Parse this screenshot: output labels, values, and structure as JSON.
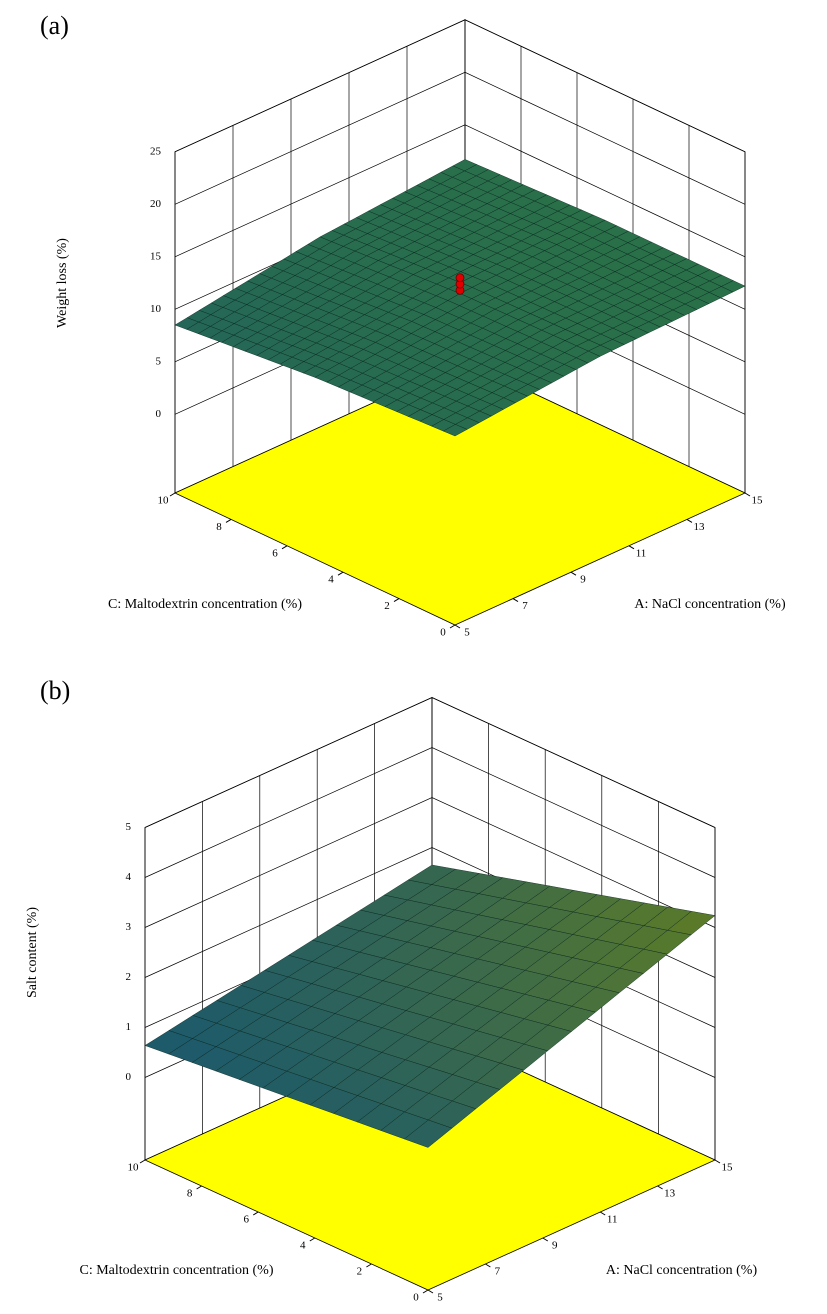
{
  "chart_data": [
    {
      "type": "surface3d",
      "panel_label": "(a)",
      "x_label": "A: NaCl concentration (%)",
      "y_label": "C: Maltodextrin concentration (%)",
      "z_label": "Weight loss (%)",
      "xlim": [
        5,
        15
      ],
      "ylim": [
        0,
        10
      ],
      "zlim": [
        -7.5,
        25
      ],
      "xticks": [
        5,
        7,
        9,
        11,
        13,
        15
      ],
      "yticks": [
        0,
        2,
        4,
        6,
        8,
        10
      ],
      "zticks": [
        0,
        5,
        10,
        15,
        20,
        25
      ],
      "surface": {
        "x": [
          5,
          10,
          15
        ],
        "y": [
          0,
          5,
          10
        ],
        "z": [
          [
            10.5,
            11.8,
            12.2
          ],
          [
            9.8,
            11.5,
            12.2
          ],
          [
            8.5,
            10.6,
            11.7
          ]
        ]
      },
      "design_points": {
        "x": 10,
        "y": 5,
        "z": [
          11.8,
          12.4,
          13
        ],
        "color": "#e00000"
      },
      "floor_color": "#ffff00",
      "colormap": [
        "#0a1a48",
        "#1d5a6a",
        "#2f7a3a"
      ]
    },
    {
      "type": "surface3d",
      "panel_label": "(b)",
      "x_label": "A: NaCl concentration (%)",
      "y_label": "C: Maltodextrin concentration (%)",
      "z_label": "Salt content (%)",
      "xlim": [
        5,
        15
      ],
      "ylim": [
        0,
        10
      ],
      "zlim": [
        -1.65,
        5
      ],
      "xticks": [
        5,
        7,
        9,
        11,
        13,
        15
      ],
      "yticks": [
        0,
        2,
        4,
        6,
        8,
        10
      ],
      "zticks": [
        0,
        1,
        2,
        3,
        4,
        5
      ],
      "surface": {
        "x": [
          5,
          15
        ],
        "y": [
          0,
          10
        ],
        "z": [
          [
            1.2,
            3.24
          ],
          [
            0.64,
            1.65
          ]
        ]
      },
      "floor_color": "#ffff00",
      "colormap": [
        "#0a1a48",
        "#1d5a6a",
        "#5a7a2a"
      ]
    }
  ]
}
